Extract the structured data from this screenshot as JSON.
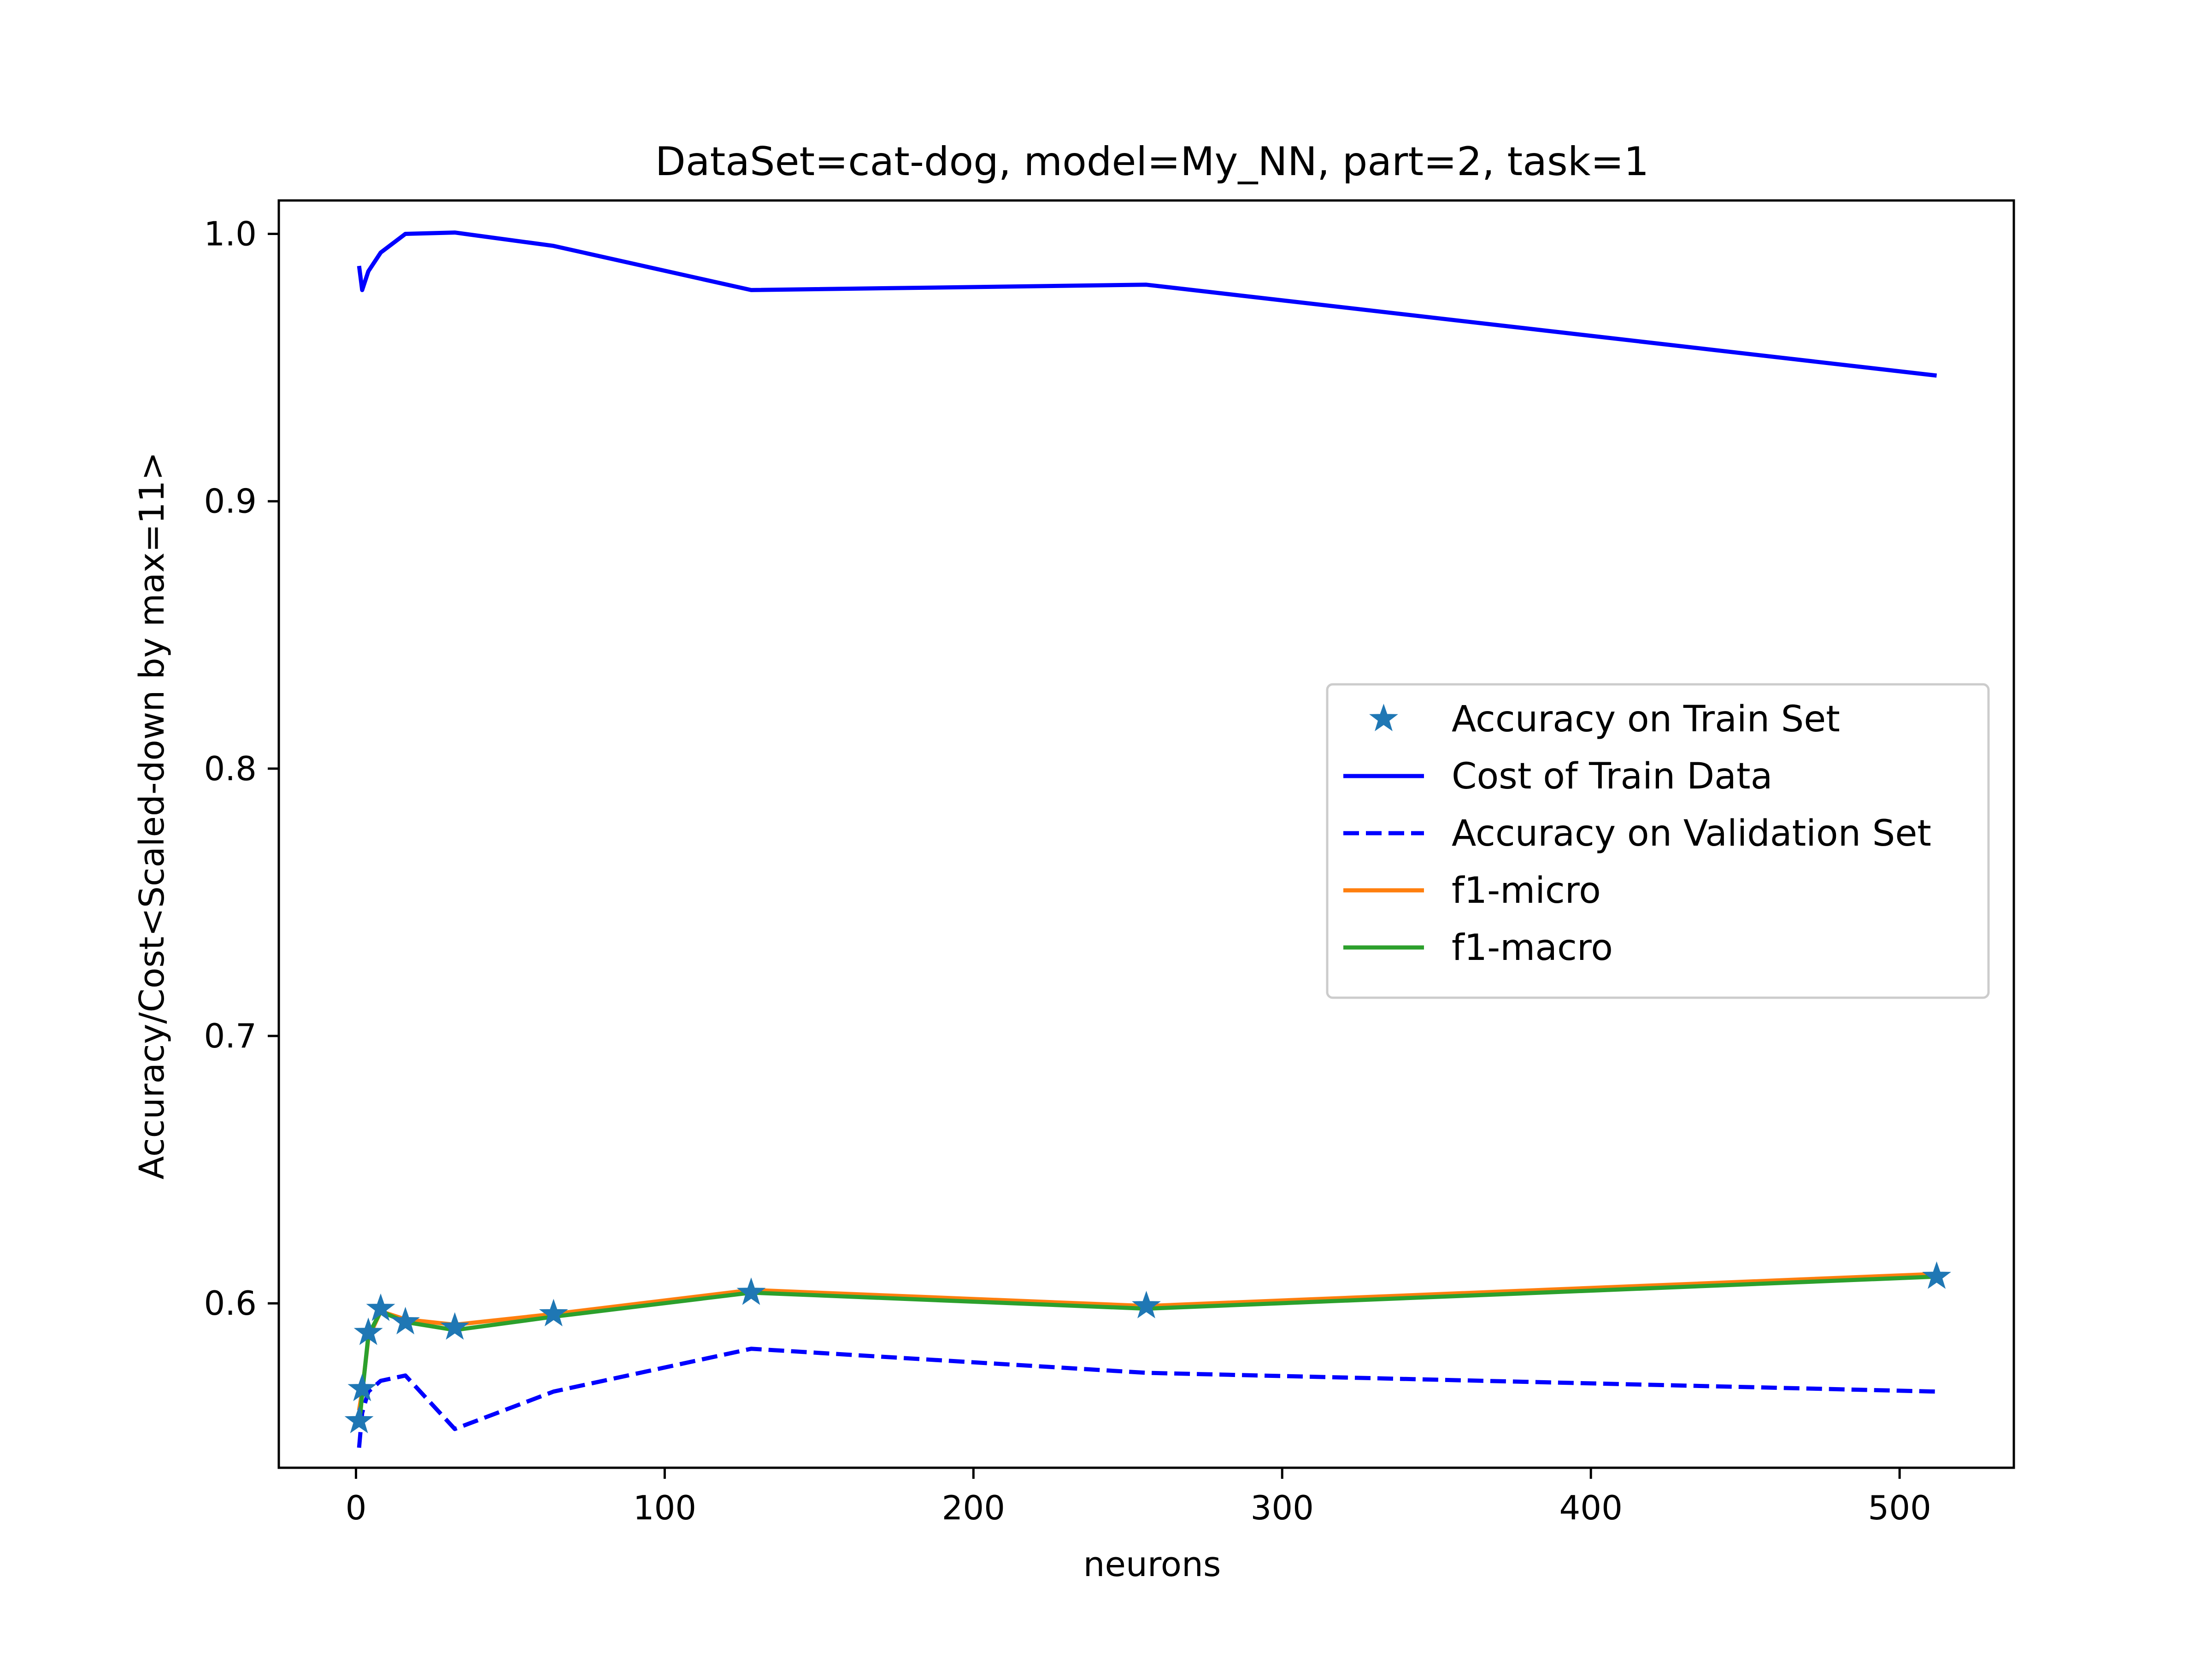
{
  "chart_data": {
    "type": "line",
    "title": "DataSet=cat-dog, model=My_NN, part=2, task=1",
    "xlabel": "neurons",
    "ylabel": "Accuracy/Cost<Scaled-down by max=11>",
    "xlim": [
      -25,
      537
    ],
    "ylim": [
      0.5385,
      1.0125
    ],
    "x_ticks": [
      0,
      100,
      200,
      300,
      400,
      500
    ],
    "x_tick_labels": [
      "0",
      "100",
      "200",
      "300",
      "400",
      "500"
    ],
    "y_ticks": [
      0.6,
      0.7,
      0.8,
      0.9,
      1.0
    ],
    "y_tick_labels": [
      "0.6",
      "0.7",
      "0.8",
      "0.9",
      "1.0"
    ],
    "grid": false,
    "legend_position": "center-right",
    "x": [
      1,
      2,
      4,
      8,
      16,
      32,
      64,
      128,
      256,
      512
    ],
    "series": [
      {
        "name": "Accuracy on Train Set",
        "style": "marker-star",
        "color": "#1f77b4",
        "values": [
          0.556,
          0.568,
          0.589,
          0.598,
          0.593,
          0.591,
          0.596,
          0.604,
          0.599,
          0.61
        ]
      },
      {
        "name": "Cost of Train Data",
        "style": "solid",
        "color": "#0000ff",
        "values": [
          0.988,
          0.979,
          0.986,
          0.993,
          1.0,
          1.0005,
          0.9955,
          0.979,
          0.981,
          0.947
        ]
      },
      {
        "name": "Accuracy on Validation Set",
        "style": "dashed",
        "color": "#0000ff",
        "values": [
          0.546,
          0.559,
          0.567,
          0.571,
          0.573,
          0.553,
          0.567,
          0.583,
          0.574,
          0.567
        ]
      },
      {
        "name": "f1-micro",
        "style": "solid",
        "color": "#ff7f0e",
        "values": [
          0.56,
          0.567,
          0.587,
          0.597,
          0.594,
          0.592,
          0.596,
          0.605,
          0.599,
          0.611
        ]
      },
      {
        "name": "f1-macro",
        "style": "solid",
        "color": "#2ca02c",
        "values": [
          0.554,
          0.566,
          0.588,
          0.597,
          0.593,
          0.59,
          0.595,
          0.604,
          0.598,
          0.61
        ]
      }
    ]
  }
}
